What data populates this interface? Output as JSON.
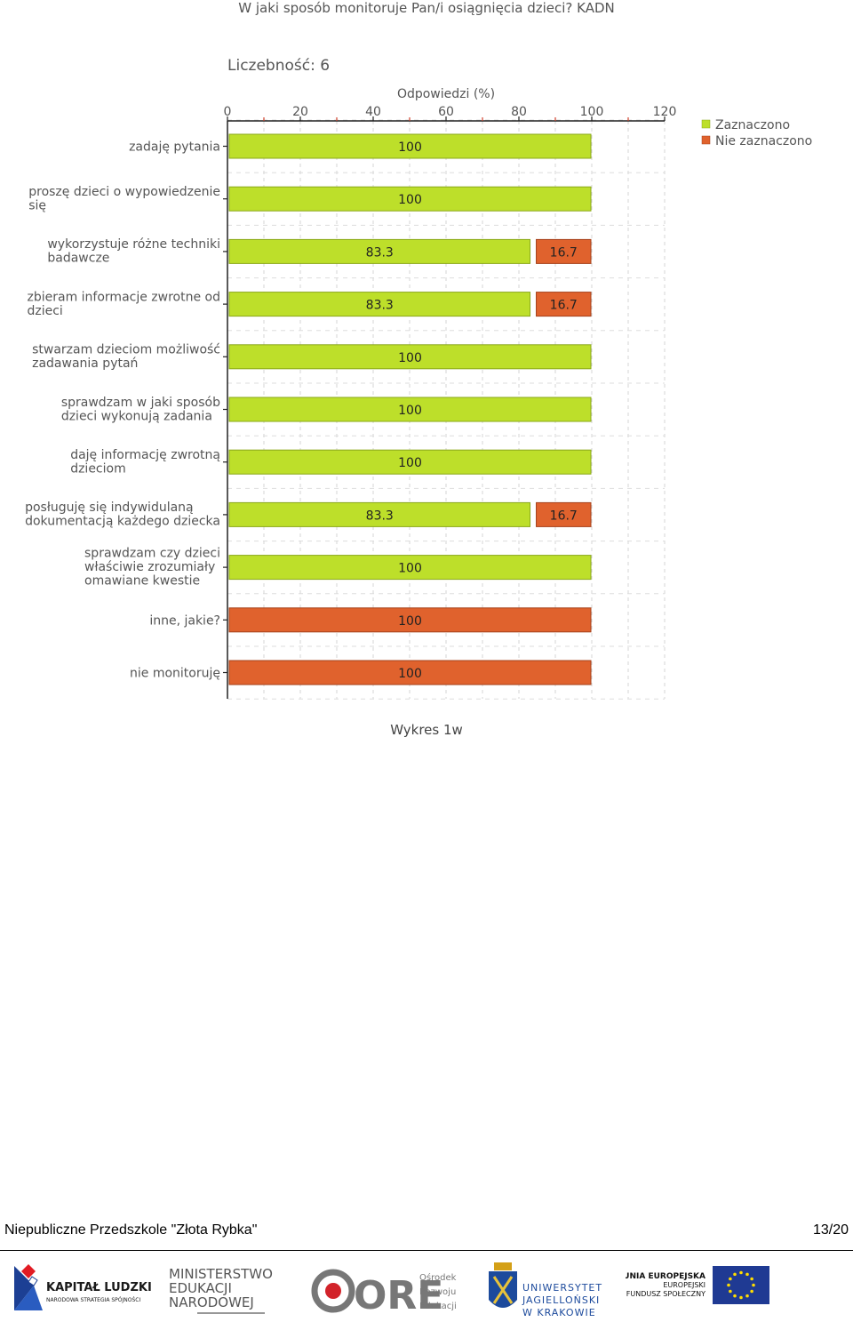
{
  "page": {
    "title": "W jaki sposób monitoruje Pan/i osiągnięcia dzieci?  KADN",
    "caption": "Wykres 1w",
    "footer_left": "Niepubliczne Przedszkole \"Złota Rybka\"",
    "footer_right": "13/20"
  },
  "logos": {
    "kl_line1": "KAPITAŁ LUDZKI",
    "kl_line2": "NARODOWA STRATEGIA SPÓJNOŚCI",
    "men_line1": "MINISTERSTWO",
    "men_line2": "EDUKACJI",
    "men_line3": "NARODOWEJ",
    "ore_mark": "ORE",
    "ore_line1": "Ośrodek",
    "ore_line2": "Rozwoju",
    "ore_line3": "Edukacji",
    "uj_line1": "UNIWERSYTET",
    "uj_line2": "JAGIELLOŃSKI",
    "uj_line3": "W KRAKOWIE",
    "ue_line1": "UNIA EUROPEJSKA",
    "ue_line2": "EUROPEJSKI",
    "ue_line3": "FUNDUSZ SPOŁECZNY"
  },
  "chart_data": {
    "type": "bar",
    "orientation": "horizontal",
    "stacked": true,
    "subtitle": "Liczebność: 6",
    "xlabel": "Odpowiedzi (%)",
    "xlim": [
      0,
      120
    ],
    "xticks": [
      0,
      20,
      40,
      60,
      80,
      100,
      120
    ],
    "grid": true,
    "legend_position": "top-right",
    "categories": [
      [
        "zadaję pytania"
      ],
      [
        "proszę dzieci o wypowiedzenie",
        "się"
      ],
      [
        "wykorzystuje różne techniki",
        "badawcze"
      ],
      [
        "zbieram informacje zwrotne od",
        "dzieci"
      ],
      [
        "stwarzam dzieciom możliwość",
        "zadawania pytań"
      ],
      [
        "sprawdzam w jaki sposób",
        "dzieci wykonują zadania"
      ],
      [
        "daję informację zwrotną",
        "dzieciom"
      ],
      [
        "posługuję się indywidulaną",
        "dokumentacją każdego dziecka"
      ],
      [
        "sprawdzam czy dzieci",
        "właściwie zrozumiały",
        "omawiane kwestie"
      ],
      [
        "inne, jakie?"
      ],
      [
        "nie monitoruję"
      ]
    ],
    "series": [
      {
        "name": "Zaznaczono",
        "color": "#bddf2a",
        "border": "#8aa81a",
        "values": [
          100,
          100,
          83.3,
          83.3,
          100,
          100,
          100,
          83.3,
          100,
          0,
          0
        ]
      },
      {
        "name": "Nie zaznaczono",
        "color": "#e0622d",
        "border": "#a5401a",
        "values": [
          0,
          0,
          16.7,
          16.7,
          0,
          0,
          0,
          16.7,
          0,
          100,
          100
        ]
      }
    ]
  }
}
